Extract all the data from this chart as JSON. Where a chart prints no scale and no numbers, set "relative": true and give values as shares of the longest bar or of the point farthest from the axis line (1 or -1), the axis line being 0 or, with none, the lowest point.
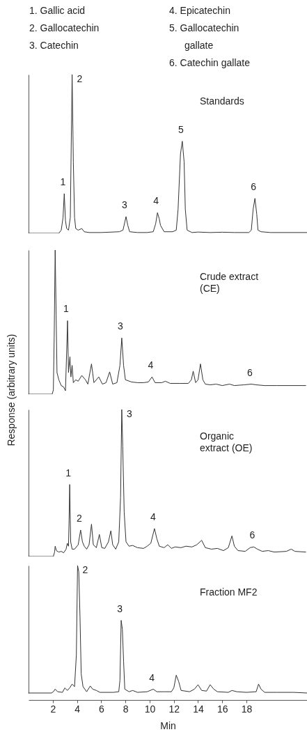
{
  "chart_data": [
    {
      "type": "line",
      "title": "Standards",
      "relative": true,
      "xlim": [
        0,
        23
      ],
      "xticks": [
        2,
        4,
        6,
        8,
        10,
        12,
        14,
        16,
        18
      ],
      "tick_labels": false,
      "annotations": [
        "1. Gallic acid",
        "2. Gallocatechin",
        "3. Catechin",
        "4. Epicatechin",
        "5. Gallocatechin gallate",
        "6. Catechin gallate",
        {
          "text": "1",
          "x": 2.95,
          "y": 0.25
        },
        {
          "text": "2",
          "x": 3.6,
          "y": 1
        },
        {
          "text": "3",
          "x": 8.05,
          "y": 0.105
        },
        {
          "text": "4",
          "x": 10.65,
          "y": 0.13
        },
        {
          "text": "5",
          "x": 12.7,
          "y": 0.58
        },
        {
          "text": "6",
          "x": 18.7,
          "y": 0.22
        }
      ],
      "series": [
        {
          "color": "#333333",
          "x": [
            0,
            2.5,
            2.7,
            2.85,
            2.95,
            3.05,
            3.15,
            3.3,
            3.45,
            3.6,
            3.7,
            3.8,
            3.9,
            4.1,
            4.4,
            4.6,
            5,
            6,
            7.5,
            7.8,
            7.95,
            8.05,
            8.2,
            8.35,
            9,
            9.8,
            10.3,
            10.5,
            10.65,
            10.8,
            10.9,
            11.2,
            11.9,
            12.2,
            12.35,
            12.55,
            12.7,
            12.85,
            12.95,
            13.1,
            13.5,
            14,
            15,
            16,
            17,
            18.2,
            18.4,
            18.55,
            18.7,
            18.85,
            18.95,
            19.2,
            20,
            23
          ],
          "values": [
            0,
            0,
            0.02,
            0.1,
            0.25,
            0.08,
            0.03,
            0.02,
            0.1,
            1,
            0.45,
            0.1,
            0.03,
            0.02,
            0.03,
            0.01,
            0.005,
            0.005,
            0.01,
            0.02,
            0.07,
            0.105,
            0.05,
            0.01,
            0.005,
            0.005,
            0.01,
            0.06,
            0.13,
            0.09,
            0.05,
            0.01,
            0.01,
            0.02,
            0.15,
            0.5,
            0.58,
            0.45,
            0.15,
            0.02,
            0.005,
            0.008,
            0.005,
            0.007,
            0.005,
            0.005,
            0.02,
            0.15,
            0.22,
            0.12,
            0.02,
            0.01,
            0.005,
            0.005
          ]
        }
      ]
    },
    {
      "type": "line",
      "title": "Crude extract (CE)",
      "ylabel": "Response (arbitrary units)",
      "relative": true,
      "xlim": [
        0,
        23
      ],
      "xticks": [
        2,
        4,
        6,
        8,
        10,
        12,
        14,
        16,
        18
      ],
      "tick_labels": false,
      "annotations": [
        {
          "text": "1",
          "x": 3.22,
          "y": 0.51
        },
        {
          "text": "3",
          "x": 7.7,
          "y": 0.39
        },
        {
          "text": "4",
          "x": 10.2,
          "y": 0.12
        },
        {
          "text": "6",
          "x": 18.4,
          "y": 0.07
        }
      ],
      "series": [
        {
          "color": "#333333",
          "x": [
            0,
            1.95,
            2.05,
            2.12,
            2.2,
            2.28,
            2.35,
            2.5,
            2.7,
            2.9,
            3.05,
            3.15,
            3.22,
            3.3,
            3.42,
            3.5,
            3.6,
            3.7,
            3.9,
            4.1,
            4.4,
            4.7,
            4.9,
            5.2,
            5.4,
            5.8,
            6.1,
            6.4,
            6.7,
            6.95,
            7.3,
            7.55,
            7.7,
            7.85,
            8,
            8.5,
            9,
            9.5,
            9.9,
            10.2,
            10.45,
            11,
            11.3,
            11.7,
            12.5,
            13.2,
            13.45,
            13.6,
            13.8,
            14,
            14.2,
            14.4,
            14.6,
            15,
            15.5,
            16,
            16.6,
            17,
            17.8,
            18.4,
            18.8,
            19.5,
            20.5,
            22.9
          ],
          "values": [
            0,
            0,
            0.03,
            0.4,
            1,
            0.55,
            0.15,
            0.1,
            0.06,
            0.05,
            0.024,
            0.3,
            0.51,
            0.15,
            0.26,
            0.12,
            0.2,
            0.08,
            0.1,
            0.09,
            0.13,
            0.1,
            0.07,
            0.21,
            0.08,
            0.12,
            0.07,
            0.08,
            0.155,
            0.07,
            0.08,
            0.2,
            0.39,
            0.2,
            0.1,
            0.085,
            0.08,
            0.08,
            0.085,
            0.12,
            0.08,
            0.08,
            0.09,
            0.075,
            0.075,
            0.075,
            0.1,
            0.16,
            0.08,
            0.1,
            0.21,
            0.1,
            0.07,
            0.065,
            0.07,
            0.06,
            0.07,
            0.06,
            0.065,
            0.07,
            0.065,
            0.06,
            0.06,
            0.06
          ]
        }
      ]
    },
    {
      "type": "line",
      "title": "Organic extract (OE)",
      "relative": true,
      "xlim": [
        0,
        23
      ],
      "xticks": [
        2,
        4,
        6,
        8,
        10,
        12,
        14,
        16,
        18
      ],
      "tick_labels": false,
      "annotations": [
        {
          "text": "1",
          "x": 3.4,
          "y": 0.49
        },
        {
          "text": "2",
          "x": 4.3,
          "y": 0.18
        },
        {
          "text": "3",
          "x": 7.7,
          "y": 1
        },
        {
          "text": "4",
          "x": 10.4,
          "y": 0.19
        },
        {
          "text": "6",
          "x": 18.6,
          "y": 0.065
        }
      ],
      "series": [
        {
          "color": "#333333",
          "x": [
            0,
            2.05,
            2.15,
            2.2,
            2.3,
            2.5,
            2.7,
            2.9,
            3.1,
            3.2,
            3.3,
            3.35,
            3.4,
            3.48,
            3.6,
            3.8,
            4.1,
            4.3,
            4.45,
            4.6,
            4.8,
            5,
            5.2,
            5.35,
            5.6,
            5.85,
            6.05,
            6.3,
            6.6,
            6.8,
            6.95,
            7.2,
            7.45,
            7.6,
            7.7,
            7.78,
            7.9,
            8.05,
            8.3,
            8.6,
            9,
            9.5,
            9.8,
            10.1,
            10.4,
            10.6,
            10.8,
            11.2,
            11.5,
            11.8,
            12.1,
            12.6,
            13,
            13.5,
            13.9,
            14.3,
            14.6,
            15.1,
            15.6,
            16.1,
            16.5,
            16.8,
            17,
            17.3,
            17.9,
            18.3,
            18.6,
            18.9,
            19.3,
            19.8,
            20.3,
            21.3,
            21.7,
            22,
            22.9
          ],
          "values": [
            0,
            0,
            0.03,
            0.07,
            0.04,
            0.03,
            0.035,
            0.025,
            0.05,
            0.09,
            0.07,
            0.25,
            0.49,
            0.1,
            0.05,
            0.05,
            0.08,
            0.18,
            0.1,
            0.07,
            0.05,
            0.08,
            0.22,
            0.08,
            0.06,
            0.15,
            0.06,
            0.055,
            0.1,
            0.175,
            0.08,
            0.05,
            0.1,
            0.4,
            1,
            0.75,
            0.3,
            0.1,
            0.07,
            0.075,
            0.06,
            0.055,
            0.07,
            0.09,
            0.19,
            0.12,
            0.07,
            0.06,
            0.08,
            0.055,
            0.065,
            0.06,
            0.07,
            0.065,
            0.08,
            0.11,
            0.06,
            0.05,
            0.055,
            0.04,
            0.06,
            0.14,
            0.07,
            0.04,
            0.035,
            0.06,
            0.065,
            0.05,
            0.035,
            0.04,
            0.03,
            0.035,
            0.05,
            0.035,
            0.03
          ]
        }
      ]
    },
    {
      "type": "line",
      "title": "Fraction MF2",
      "xlabel": "Min",
      "relative": true,
      "xlim": [
        0,
        23
      ],
      "xticks": [
        2,
        4,
        6,
        8,
        10,
        12,
        14,
        16,
        18
      ],
      "tick_labels": "x",
      "annotations": [
        {
          "text": "2",
          "x": 4.05,
          "y": 1
        },
        {
          "text": "3",
          "x": 7.65,
          "y": 0.57
        },
        {
          "text": "4",
          "x": 10.3,
          "y": 0.03
        }
      ],
      "series": [
        {
          "color": "#333333",
          "x": [
            0,
            1.9,
            2.05,
            2.2,
            2.4,
            2.8,
            3,
            3.2,
            3.4,
            3.6,
            3.8,
            3.95,
            4.05,
            4.15,
            4.25,
            4.35,
            4.5,
            4.8,
            5.1,
            5.3,
            5.6,
            5.9,
            7,
            7.45,
            7.55,
            7.65,
            7.75,
            7.85,
            7.95,
            8.3,
            8.6,
            9,
            9.8,
            10.3,
            10.6,
            11.2,
            11.8,
            12,
            12.2,
            12.4,
            12.6,
            13.3,
            13.7,
            14,
            14.3,
            14.7,
            15,
            15.3,
            15.6,
            16.5,
            16.8,
            17.2,
            18,
            18.8,
            19,
            19.2,
            19.5,
            20.5,
            21.9,
            23
          ],
          "values": [
            0,
            0,
            0.01,
            0.03,
            0.01,
            0.005,
            0.04,
            0.02,
            0.04,
            0.07,
            0.05,
            0.3,
            1,
            0.95,
            0.6,
            0.15,
            0.05,
            0.01,
            0.055,
            0.03,
            0.02,
            0.005,
            0.005,
            0.01,
            0.1,
            0.57,
            0.5,
            0.25,
            0.03,
            0.01,
            0.02,
            0.005,
            0.01,
            0.03,
            0.01,
            0.01,
            0.01,
            0.04,
            0.14,
            0.09,
            0.02,
            0.01,
            0.03,
            0.065,
            0.02,
            0.015,
            0.065,
            0.03,
            0.01,
            0.005,
            0.02,
            0.01,
            0.005,
            0.01,
            0.07,
            0.03,
            0.005,
            0.005,
            0.005,
            0
          ]
        }
      ]
    }
  ]
}
